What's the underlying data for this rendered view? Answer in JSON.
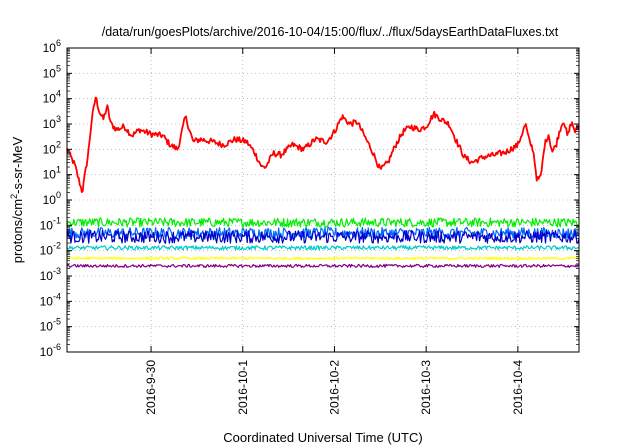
{
  "chart_data": {
    "type": "line",
    "title": "/data/run/goesPlots/archive/2016-10-04/15:00/flux/../flux/5daysEarthDataFluxes.txt",
    "xlabel": "Coordinated Universal Time (UTC)",
    "ylabel_parts": [
      "protons/cm",
      "2",
      "-s-sr-MeV"
    ],
    "yscale": "log",
    "ylim_exp": [
      -6,
      6
    ],
    "y_tick_exponents": [
      -6,
      -5,
      -4,
      -3,
      -2,
      -1,
      0,
      1,
      2,
      3,
      4,
      5,
      6
    ],
    "xlim": [
      "2016-09-29T02:00",
      "2016-10-04T16:00"
    ],
    "x_ticks": [
      {
        "label": "2016-9-30",
        "t": "2016-09-30T00:00"
      },
      {
        "label": "2016-10-1",
        "t": "2016-10-01T00:00"
      },
      {
        "label": "2016-10-2",
        "t": "2016-10-02T00:00"
      },
      {
        "label": "2016-10-3",
        "t": "2016-10-03T00:00"
      },
      {
        "label": "2016-10-4",
        "t": "2016-10-04T00:00"
      }
    ],
    "grid": true,
    "legend": "none",
    "series": [
      {
        "color": "#ff0000",
        "noise": 0.12,
        "points": [
          [
            "2016-09-29T02:00",
            100
          ],
          [
            "2016-09-29T03:00",
            50
          ],
          [
            "2016-09-29T04:00",
            25
          ],
          [
            "2016-09-29T06:00",
            2
          ],
          [
            "2016-09-29T07:30",
            60
          ],
          [
            "2016-09-29T08:30",
            1500
          ],
          [
            "2016-09-29T09:30",
            12000
          ],
          [
            "2016-09-29T10:30",
            3000
          ],
          [
            "2016-09-29T11:30",
            1500
          ],
          [
            "2016-09-29T12:30",
            5000
          ],
          [
            "2016-09-29T13:30",
            1000
          ],
          [
            "2016-09-29T15:00",
            600
          ],
          [
            "2016-09-29T17:00",
            800
          ],
          [
            "2016-09-29T19:00",
            350
          ],
          [
            "2016-09-29T21:00",
            600
          ],
          [
            "2016-09-30T00:00",
            400
          ],
          [
            "2016-09-30T03:00",
            350
          ],
          [
            "2016-09-30T05:00",
            150
          ],
          [
            "2016-09-30T07:00",
            100
          ],
          [
            "2016-09-30T09:00",
            2000
          ],
          [
            "2016-09-30T11:00",
            200
          ],
          [
            "2016-09-30T13:00",
            250
          ],
          [
            "2016-09-30T16:00",
            200
          ],
          [
            "2016-09-30T19:00",
            150
          ],
          [
            "2016-09-30T22:00",
            250
          ],
          [
            "2016-10-01T01:00",
            200
          ],
          [
            "2016-10-01T03:00",
            80
          ],
          [
            "2016-10-01T05:00",
            20
          ],
          [
            "2016-10-01T06:00",
            20
          ],
          [
            "2016-10-01T08:00",
            70
          ],
          [
            "2016-10-01T10:00",
            60
          ],
          [
            "2016-10-01T13:00",
            150
          ],
          [
            "2016-10-01T16:00",
            100
          ],
          [
            "2016-10-01T19:00",
            250
          ],
          [
            "2016-10-01T22:00",
            200
          ],
          [
            "2016-10-02T00:00",
            500
          ],
          [
            "2016-10-02T02:00",
            2000
          ],
          [
            "2016-10-02T04:00",
            1000
          ],
          [
            "2016-10-02T06:00",
            1200
          ],
          [
            "2016-10-02T08:00",
            300
          ],
          [
            "2016-10-02T10:00",
            80
          ],
          [
            "2016-10-02T12:00",
            15
          ],
          [
            "2016-10-02T14:00",
            30
          ],
          [
            "2016-10-02T16:00",
            150
          ],
          [
            "2016-10-02T18:00",
            500
          ],
          [
            "2016-10-02T20:00",
            800
          ],
          [
            "2016-10-02T22:00",
            600
          ],
          [
            "2016-10-03T00:00",
            800
          ],
          [
            "2016-10-03T02:00",
            2500
          ],
          [
            "2016-10-03T04:00",
            1500
          ],
          [
            "2016-10-03T06:00",
            1000
          ],
          [
            "2016-10-03T08:00",
            200
          ],
          [
            "2016-10-03T10:00",
            50
          ],
          [
            "2016-10-03T12:00",
            30
          ],
          [
            "2016-10-03T15:00",
            50
          ],
          [
            "2016-10-03T18:00",
            60
          ],
          [
            "2016-10-03T21:00",
            80
          ],
          [
            "2016-10-04T00:00",
            150
          ],
          [
            "2016-10-04T02:00",
            1000
          ],
          [
            "2016-10-04T03:00",
            200
          ],
          [
            "2016-10-04T04:00",
            100
          ],
          [
            "2016-10-04T05:00",
            6
          ],
          [
            "2016-10-04T06:00",
            8
          ],
          [
            "2016-10-04T07:00",
            150
          ],
          [
            "2016-10-04T08:00",
            400
          ],
          [
            "2016-10-04T09:00",
            80
          ],
          [
            "2016-10-04T10:00",
            150
          ],
          [
            "2016-10-04T11:00",
            600
          ],
          [
            "2016-10-04T12:00",
            1500
          ],
          [
            "2016-10-04T13:00",
            300
          ],
          [
            "2016-10-04T14:00",
            1200
          ],
          [
            "2016-10-04T15:00",
            500
          ],
          [
            "2016-10-04T16:00",
            800
          ]
        ]
      },
      {
        "color": "#00ee00",
        "level": 0.13,
        "noise": 0.18
      },
      {
        "color": "#0066ff",
        "level": 0.05,
        "noise": 0.22
      },
      {
        "color": "#0000cc",
        "level": 0.035,
        "noise": 0.25
      },
      {
        "color": "#00cccc",
        "level": 0.013,
        "noise": 0.08
      },
      {
        "color": "#ffff00",
        "level": 0.005,
        "noise": 0.05
      },
      {
        "color": "#800080",
        "level": 0.0025,
        "noise": 0.06
      }
    ]
  }
}
